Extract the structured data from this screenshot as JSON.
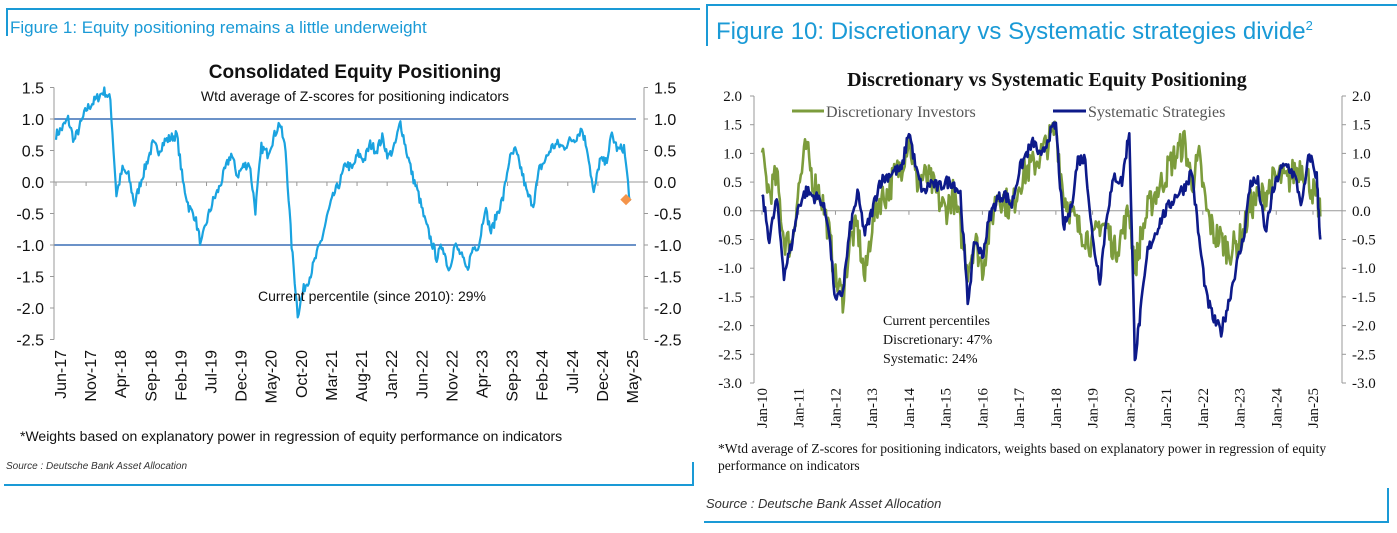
{
  "left_panel": {
    "figure_title": "Figure 1: Equity positioning remains a little underweight",
    "footnote": "*Weights based on explanatory power in regression of equity performance on indicators",
    "source": "Source : Deutsche Bank Asset Allocation"
  },
  "right_panel": {
    "figure_title": "Figure 10: Discretionary vs Systematic strategies divide",
    "figure_title_sup": "2",
    "footnote": "*Wtd average of Z-scores for positioning indicators, weights based on explanatory power in regression of equity performance on indicators",
    "source": "Source : Deutsche Bank Asset Allocation"
  },
  "colors": {
    "frame": "#1a9ad6",
    "consolidated_line": "#1aa3e0",
    "current_marker": "#f4944a",
    "band_line": "#3a6fb5",
    "discretionary": "#7c9c3c",
    "systematic": "#0d1a8a"
  },
  "chart_data": [
    {
      "type": "line",
      "title": "Consolidated Equity Positioning",
      "subtitle": "Wtd average of Z-scores for positioning indicators",
      "xlabel": "",
      "ylabel": "",
      "ylim": [
        -2.5,
        1.5
      ],
      "yticks": [
        "1.5",
        "1.0",
        "0.5",
        "0.0",
        "-0.5",
        "-1.0",
        "-1.5",
        "-2.0",
        "-2.5"
      ],
      "x_tick_labels": [
        "Jun-17",
        "Nov-17",
        "Apr-18",
        "Sep-18",
        "Feb-19",
        "Jul-19",
        "Dec-19",
        "May-20",
        "Oct-20",
        "Mar-21",
        "Aug-21",
        "Jan-22",
        "Jun-22",
        "Nov-22",
        "Apr-23",
        "Sep-23",
        "Feb-24",
        "Jul-24",
        "Dec-24",
        "May-25"
      ],
      "reference_lines": [
        1.0,
        -1.0
      ],
      "annotation": "Current percentile (since 2010): 29%",
      "current_value": -0.28,
      "series": [
        {
          "name": "Consolidated positioning",
          "x": [
            0,
            1,
            2,
            3,
            4,
            5,
            6,
            7,
            8,
            9,
            10,
            11,
            12,
            13,
            14,
            15,
            16,
            17,
            18,
            19,
            20,
            21,
            22,
            23,
            24,
            25,
            26,
            27,
            28,
            29,
            30,
            31,
            32,
            33,
            34,
            35,
            36,
            37,
            38,
            39,
            40,
            41,
            42,
            43,
            44,
            45,
            46,
            47,
            48,
            49,
            50,
            51,
            52,
            53,
            54,
            55,
            56,
            57,
            58,
            59,
            60,
            61,
            62,
            63,
            64,
            65,
            66,
            67,
            68,
            69,
            70,
            71,
            72,
            73,
            74,
            75,
            76,
            77,
            78,
            79,
            80,
            81,
            82,
            83,
            84,
            85,
            86,
            87,
            88,
            89,
            90,
            91,
            92,
            93,
            94,
            95
          ],
          "values": [
            0.75,
            0.85,
            1.0,
            0.65,
            0.9,
            1.15,
            1.25,
            1.35,
            1.45,
            1.3,
            -0.2,
            0.2,
            0.1,
            -0.35,
            0.0,
            0.3,
            0.6,
            0.5,
            0.65,
            0.7,
            0.75,
            0.0,
            -0.4,
            -0.55,
            -1.0,
            -0.6,
            -0.3,
            -0.1,
            0.2,
            0.45,
            0.1,
            0.25,
            0.3,
            -0.45,
            0.55,
            0.45,
            0.7,
            0.95,
            0.5,
            -1.0,
            -2.1,
            -1.7,
            -1.5,
            -1.2,
            -0.9,
            -0.5,
            -0.2,
            0.0,
            0.3,
            0.2,
            0.45,
            0.35,
            0.6,
            0.5,
            0.7,
            0.4,
            0.55,
            0.95,
            0.5,
            0.1,
            -0.2,
            -0.6,
            -0.9,
            -1.2,
            -1.0,
            -1.4,
            -1.0,
            -1.15,
            -1.4,
            -1.05,
            -1.0,
            -0.4,
            -0.8,
            -0.5,
            -0.25,
            0.35,
            0.5,
            0.2,
            -0.2,
            -0.35,
            0.2,
            0.35,
            0.55,
            0.6,
            0.55,
            0.65,
            0.7,
            0.85,
            0.5,
            -0.2,
            0.35,
            0.3,
            0.75,
            0.5,
            0.55,
            -0.3
          ]
        }
      ]
    },
    {
      "type": "line",
      "title": "Discretionary  vs Systematic Equity Positioning",
      "xlabel": "",
      "ylabel": "",
      "ylim": [
        -3.0,
        2.0
      ],
      "yticks": [
        "2.0",
        "1.5",
        "1.0",
        "0.5",
        "0.0",
        "-0.5",
        "-1.0",
        "-1.5",
        "-2.0",
        "-2.5",
        "-3.0"
      ],
      "x_tick_labels": [
        "Jan-10",
        "Jan-11",
        "Jan-12",
        "Jan-13",
        "Jan-14",
        "Jan-15",
        "Jan-16",
        "Jan-17",
        "Jan-18",
        "Jan-19",
        "Jan-20",
        "Jan-21",
        "Jan-22",
        "Jan-23",
        "Jan-24",
        "Jan-25"
      ],
      "legend": [
        "Discretionary Investors",
        "Systematic Strategies"
      ],
      "legend_position": "top",
      "annotation": [
        "Current percentiles",
        "Discretionary: 47%",
        "Systematic: 24%"
      ],
      "series": [
        {
          "name": "Discretionary Investors",
          "x": [
            2010.0,
            2010.2,
            2010.4,
            2010.6,
            2010.8,
            2011.0,
            2011.2,
            2011.4,
            2011.6,
            2011.8,
            2012.0,
            2012.2,
            2012.4,
            2012.6,
            2012.8,
            2013.0,
            2013.2,
            2013.4,
            2013.6,
            2013.8,
            2014.0,
            2014.2,
            2014.4,
            2014.6,
            2014.8,
            2015.0,
            2015.2,
            2015.4,
            2015.6,
            2015.8,
            2016.0,
            2016.2,
            2016.4,
            2016.6,
            2016.8,
            2017.0,
            2017.2,
            2017.4,
            2017.6,
            2017.8,
            2018.0,
            2018.2,
            2018.4,
            2018.6,
            2018.8,
            2019.0,
            2019.2,
            2019.4,
            2019.6,
            2019.8,
            2020.0,
            2020.15,
            2020.3,
            2020.5,
            2020.7,
            2020.9,
            2021.1,
            2021.3,
            2021.5,
            2021.7,
            2021.9,
            2022.1,
            2022.3,
            2022.5,
            2022.7,
            2022.9,
            2023.1,
            2023.3,
            2023.5,
            2023.7,
            2023.9,
            2024.1,
            2024.3,
            2024.5,
            2024.7,
            2024.9,
            2025.1,
            2025.2
          ],
          "values": [
            0.9,
            0.3,
            0.6,
            -0.5,
            -0.6,
            0.4,
            1.1,
            0.5,
            0.3,
            -0.3,
            -1.2,
            -1.5,
            -0.5,
            -0.3,
            -1.2,
            -0.2,
            0.2,
            0.3,
            0.6,
            0.8,
            1.3,
            0.5,
            0.6,
            0.5,
            0.2,
            0.0,
            0.3,
            -0.3,
            -1.0,
            -0.5,
            -1.0,
            -0.3,
            0.3,
            0.2,
            0.0,
            0.5,
            0.7,
            0.8,
            1.0,
            1.2,
            1.45,
            0.3,
            0.0,
            -0.3,
            -0.4,
            -0.6,
            -0.2,
            -0.3,
            -0.7,
            -0.4,
            0.0,
            -1.0,
            -0.5,
            0.0,
            0.3,
            0.5,
            0.8,
            1.0,
            1.2,
            0.5,
            0.9,
            0.0,
            -0.4,
            -0.5,
            -0.7,
            -0.6,
            -0.4,
            0.1,
            0.2,
            0.3,
            0.5,
            0.6,
            0.5,
            0.7,
            0.8,
            0.5,
            0.2,
            -0.1
          ]
        },
        {
          "name": "Systematic Strategies",
          "x": [
            2010.0,
            2010.2,
            2010.4,
            2010.6,
            2010.8,
            2011.0,
            2011.2,
            2011.4,
            2011.6,
            2011.8,
            2012.0,
            2012.2,
            2012.4,
            2012.6,
            2012.8,
            2013.0,
            2013.2,
            2013.4,
            2013.6,
            2013.8,
            2014.0,
            2014.2,
            2014.4,
            2014.6,
            2014.8,
            2015.0,
            2015.2,
            2015.4,
            2015.6,
            2015.8,
            2016.0,
            2016.2,
            2016.4,
            2016.6,
            2016.8,
            2017.0,
            2017.2,
            2017.4,
            2017.6,
            2017.8,
            2018.0,
            2018.2,
            2018.4,
            2018.6,
            2018.8,
            2019.0,
            2019.2,
            2019.4,
            2019.6,
            2019.8,
            2020.0,
            2020.15,
            2020.3,
            2020.5,
            2020.7,
            2020.9,
            2021.1,
            2021.3,
            2021.5,
            2021.7,
            2021.9,
            2022.1,
            2022.3,
            2022.5,
            2022.7,
            2022.9,
            2023.1,
            2023.3,
            2023.5,
            2023.7,
            2023.9,
            2024.1,
            2024.3,
            2024.5,
            2024.7,
            2024.9,
            2025.1,
            2025.2
          ],
          "values": [
            0.3,
            -0.5,
            0.2,
            -1.1,
            -0.6,
            0.1,
            0.35,
            0.25,
            0.2,
            -0.2,
            -1.6,
            -1.4,
            -0.3,
            0.3,
            -0.4,
            0.0,
            0.5,
            0.6,
            0.7,
            0.7,
            1.4,
            0.7,
            0.3,
            0.5,
            0.4,
            0.5,
            0.5,
            0.3,
            -1.6,
            -0.5,
            -0.8,
            -0.1,
            0.2,
            0.3,
            0.1,
            0.7,
            1.0,
            1.2,
            0.9,
            1.3,
            1.5,
            -0.3,
            0.0,
            0.9,
            0.9,
            -0.5,
            -1.2,
            0.0,
            0.6,
            0.5,
            1.4,
            -2.6,
            -1.8,
            -0.7,
            -0.4,
            -0.1,
            0.1,
            0.3,
            0.4,
            0.7,
            -0.5,
            -1.5,
            -1.9,
            -2.1,
            -1.6,
            -1.0,
            -0.5,
            0.5,
            0.5,
            -0.4,
            0.3,
            0.7,
            0.8,
            0.6,
            0.1,
            1.0,
            0.6,
            -0.5
          ]
        }
      ]
    }
  ]
}
